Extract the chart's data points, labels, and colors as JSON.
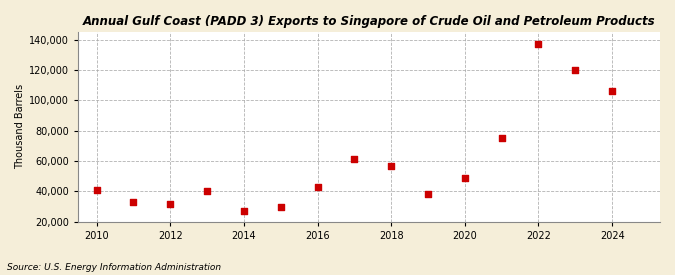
{
  "years": [
    2010,
    2011,
    2012,
    2013,
    2014,
    2015,
    2016,
    2017,
    2018,
    2019,
    2020,
    2021,
    2022,
    2023,
    2024
  ],
  "values": [
    41000,
    33000,
    32000,
    40000,
    27000,
    30000,
    43000,
    61000,
    57000,
    38000,
    49000,
    75000,
    137000,
    120000,
    106000
  ],
  "title": "Annual Gulf Coast (PADD 3) Exports to Singapore of Crude Oil and Petroleum Products",
  "ylabel": "Thousand Barrels",
  "source": "Source: U.S. Energy Information Administration",
  "marker_color": "#cc0000",
  "fig_background_color": "#f5eed9",
  "plot_background_color": "#ffffff",
  "grid_color": "#aaaaaa",
  "ylim_min": 20000,
  "ylim_max": 145000,
  "xlim_min": 2009.5,
  "xlim_max": 2025.3,
  "yticks": [
    20000,
    40000,
    60000,
    80000,
    100000,
    120000,
    140000
  ],
  "xticks": [
    2010,
    2012,
    2014,
    2016,
    2018,
    2020,
    2022,
    2024
  ]
}
